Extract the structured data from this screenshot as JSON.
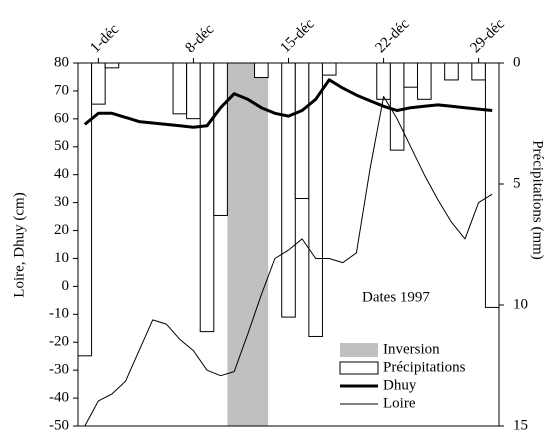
{
  "chart_data": {
    "type": "bar",
    "y_label": "Loire, Dhuy (cm)",
    "y2_label": "Précipitations (mm)",
    "annotation": "Dates 1997",
    "categories": [
      null,
      "1-déc",
      null,
      null,
      null,
      null,
      null,
      null,
      "8-déc",
      null,
      null,
      null,
      null,
      null,
      null,
      "15-déc",
      null,
      null,
      null,
      null,
      null,
      null,
      "22-déc",
      null,
      null,
      null,
      null,
      null,
      null,
      "29-déc",
      null
    ],
    "ylim": [
      -50,
      80
    ],
    "yticks": [
      -50,
      -40,
      -30,
      -20,
      -10,
      0,
      10,
      20,
      30,
      40,
      50,
      60,
      70,
      80
    ],
    "y2lim": [
      0,
      15
    ],
    "y2ticks": [
      0,
      5,
      10,
      15
    ],
    "y2_inverted": true,
    "legend": "lower right",
    "highlight": {
      "name": "Inversion",
      "color": "#c0c0c0",
      "from": 11,
      "to": 13
    },
    "series": [
      {
        "name": "Précipitations",
        "type": "bar",
        "axis": "y2",
        "color": "#ffffff",
        "values": [
          12.1,
          1.7,
          0.2,
          null,
          null,
          null,
          null,
          2.1,
          2.3,
          11.1,
          6.3,
          null,
          null,
          0.6,
          null,
          10.5,
          5.6,
          11.3,
          0.5,
          null,
          null,
          null,
          1.5,
          3.6,
          1.0,
          1.5,
          null,
          0.7,
          null,
          0.7,
          10.1
        ]
      },
      {
        "name": "Dhuy",
        "type": "line",
        "color": "#000000",
        "line_width": 3,
        "values": [
          58,
          62,
          62,
          60.5,
          59,
          58.5,
          58,
          57.5,
          57,
          57.5,
          64,
          69,
          67,
          64,
          62,
          61,
          63,
          67,
          74,
          71,
          68.5,
          66.5,
          64.5,
          63,
          64,
          64.5,
          65,
          64.5,
          64,
          63.5,
          63
        ]
      },
      {
        "name": "Loire",
        "type": "line",
        "color": "#000000",
        "line_width": 1,
        "values": [
          -50,
          -41,
          -38.5,
          -34,
          -23,
          -12,
          -13.5,
          -19,
          -23,
          -30,
          -32,
          -30.5,
          -17,
          -3,
          10,
          13,
          17,
          10,
          10,
          8.5,
          12,
          42,
          68,
          60,
          50,
          40,
          31,
          23,
          17,
          30,
          33
        ]
      }
    ]
  }
}
